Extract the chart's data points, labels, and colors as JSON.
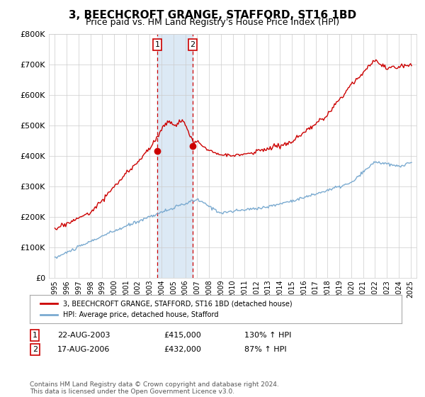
{
  "title": "3, BEECHCROFT GRANGE, STAFFORD, ST16 1BD",
  "subtitle": "Price paid vs. HM Land Registry's House Price Index (HPI)",
  "title_fontsize": 11,
  "subtitle_fontsize": 9,
  "ylim": [
    0,
    800000
  ],
  "yticks": [
    0,
    100000,
    200000,
    300000,
    400000,
    500000,
    600000,
    700000,
    800000
  ],
  "ytick_labels": [
    "£0",
    "£100K",
    "£200K",
    "£300K",
    "£400K",
    "£500K",
    "£600K",
    "£700K",
    "£800K"
  ],
  "hpi_color": "#7aaad0",
  "house_color": "#cc0000",
  "transaction1_date": 2003.63,
  "transaction1_price": 415000,
  "transaction2_date": 2006.63,
  "transaction2_price": 432000,
  "shade_color": "#dce9f5",
  "vline_color": "#cc0000",
  "legend_line1": "3, BEECHCROFT GRANGE, STAFFORD, ST16 1BD (detached house)",
  "legend_line2": "HPI: Average price, detached house, Stafford",
  "table_row1_num": "1",
  "table_row1_date": "22-AUG-2003",
  "table_row1_price": "£415,000",
  "table_row1_hpi": "130% ↑ HPI",
  "table_row2_num": "2",
  "table_row2_date": "17-AUG-2006",
  "table_row2_price": "£432,000",
  "table_row2_hpi": "87% ↑ HPI",
  "footer": "Contains HM Land Registry data © Crown copyright and database right 2024.\nThis data is licensed under the Open Government Licence v3.0.",
  "background_color": "#ffffff",
  "grid_color": "#cccccc",
  "xlim_min": 1994.5,
  "xlim_max": 2025.5
}
